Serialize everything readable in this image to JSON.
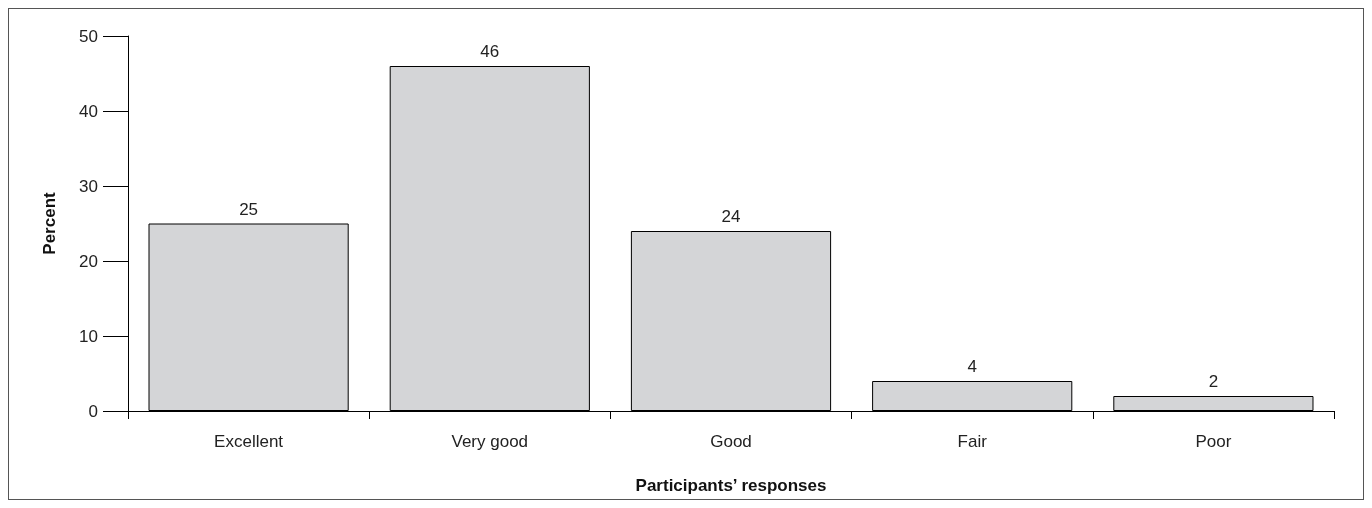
{
  "chart_data": {
    "type": "bar",
    "xlabel": "Participants’ responses",
    "ylabel": "Percent",
    "categories": [
      "Excellent",
      "Very good",
      "Good",
      "Fair",
      "Poor"
    ],
    "values": [
      25,
      46,
      24,
      4,
      2
    ],
    "color": "#d4d5d7",
    "ylim": [
      0,
      50
    ],
    "yticks": [
      0,
      10,
      20,
      30,
      40,
      50
    ],
    "grid": false,
    "data_labels": true
  }
}
